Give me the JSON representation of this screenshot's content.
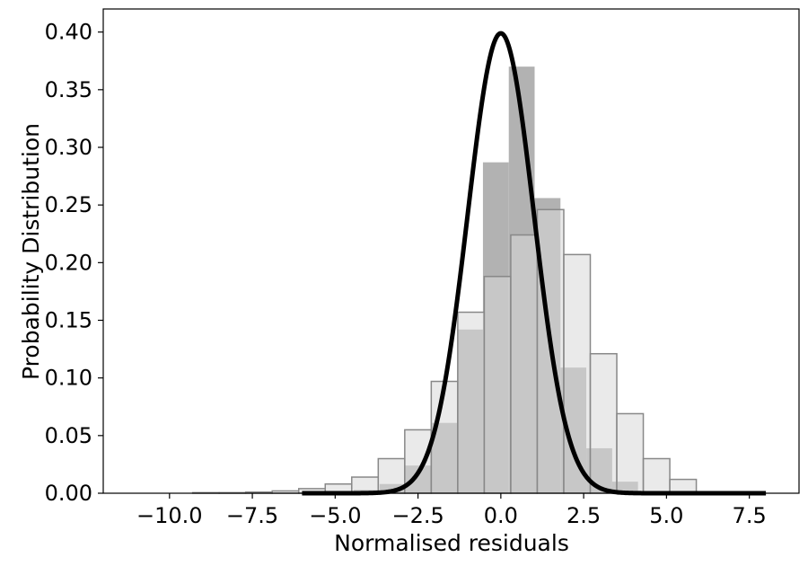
{
  "chart_data": {
    "type": "bar",
    "title": "",
    "xlabel": "Normalised residuals",
    "ylabel": "Probability Distribution",
    "xlim": [
      -12.0,
      9.0
    ],
    "ylim": [
      0.0,
      0.42
    ],
    "xticks": [
      -10.0,
      -7.5,
      -5.0,
      -2.5,
      0.0,
      2.5,
      5.0,
      7.5
    ],
    "xtick_labels": [
      "−10.0",
      "−7.5",
      "−5.0",
      "−2.5",
      "0.0",
      "2.5",
      "5.0",
      "7.5"
    ],
    "yticks": [
      0.0,
      0.05,
      0.1,
      0.15,
      0.2,
      0.25,
      0.3,
      0.35,
      0.4
    ],
    "ytick_labels": [
      "0.00",
      "0.05",
      "0.10",
      "0.15",
      "0.20",
      "0.25",
      "0.30",
      "0.35",
      "0.40"
    ],
    "grid": false,
    "series": [
      {
        "kind": "histogram-filled",
        "color": "#b2b2b2",
        "bin_width": 0.78,
        "bin_starts": [
          -6.0,
          -5.22,
          -4.44,
          -3.66,
          -2.88,
          -2.1,
          -1.32,
          -0.54,
          0.24,
          1.02,
          1.8,
          2.58,
          3.36
        ],
        "values": [
          0.0005,
          0.001,
          0.003,
          0.008,
          0.024,
          0.061,
          0.142,
          0.287,
          0.37,
          0.256,
          0.109,
          0.039,
          0.01
        ]
      },
      {
        "kind": "histogram-outline",
        "color": "#888888",
        "fill": "#d9d9d9",
        "bin_width": 0.8,
        "bin_starts": [
          -9.3,
          -8.5,
          -7.7,
          -6.9,
          -6.1,
          -5.3,
          -4.5,
          -3.7,
          -2.9,
          -2.1,
          -1.3,
          -0.5,
          0.3,
          1.1,
          1.9,
          2.7,
          3.5,
          4.3,
          5.1
        ],
        "values": [
          0.0005,
          0.0005,
          0.001,
          0.002,
          0.004,
          0.008,
          0.014,
          0.03,
          0.055,
          0.097,
          0.157,
          0.188,
          0.224,
          0.246,
          0.207,
          0.121,
          0.069,
          0.03,
          0.012
        ]
      },
      {
        "kind": "line",
        "color": "#000000",
        "name": "",
        "x_range": [
          -6.0,
          8.0
        ],
        "mean": 0.0,
        "std": 1.0
      }
    ]
  }
}
